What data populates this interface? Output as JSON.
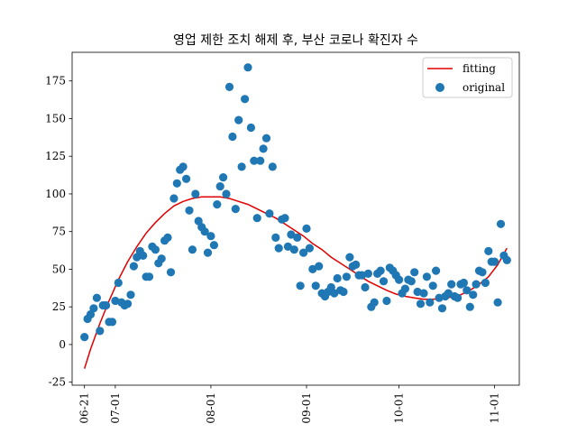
{
  "chart_data": {
    "type": "scatter",
    "title": "영업 제한 조치 해제 후, 부산 코로나 확진자 수",
    "xlabel": "",
    "ylabel": "",
    "x_range": [
      "2021-06-17",
      "2021-11-09"
    ],
    "ylim": [
      -27,
      194
    ],
    "x_ticks": [
      {
        "date": "2021-06-21",
        "label": "06-21"
      },
      {
        "date": "2021-07-01",
        "label": "07-01"
      },
      {
        "date": "2021-08-01",
        "label": "08-01"
      },
      {
        "date": "2021-09-01",
        "label": "09-01"
      },
      {
        "date": "2021-10-01",
        "label": "10-01"
      },
      {
        "date": "2021-11-01",
        "label": "11-01"
      }
    ],
    "y_ticks": [
      -25,
      0,
      25,
      50,
      75,
      100,
      125,
      150,
      175
    ],
    "grid": false,
    "legend_position": "top-right",
    "colors": {
      "fitting": "#e00000",
      "original": "#1f77b4"
    },
    "series": [
      {
        "name": "original",
        "kind": "scatter",
        "points": [
          [
            "2021-06-21",
            5
          ],
          [
            "2021-06-22",
            17
          ],
          [
            "2021-06-23",
            20
          ],
          [
            "2021-06-24",
            24
          ],
          [
            "2021-06-25",
            31
          ],
          [
            "2021-06-26",
            9
          ],
          [
            "2021-06-27",
            26
          ],
          [
            "2021-06-28",
            26
          ],
          [
            "2021-06-29",
            15
          ],
          [
            "2021-06-30",
            15
          ],
          [
            "2021-07-01",
            29
          ],
          [
            "2021-07-02",
            41
          ],
          [
            "2021-07-03",
            28
          ],
          [
            "2021-07-04",
            26
          ],
          [
            "2021-07-05",
            27
          ],
          [
            "2021-07-06",
            33
          ],
          [
            "2021-07-07",
            52
          ],
          [
            "2021-07-08",
            58
          ],
          [
            "2021-07-09",
            62
          ],
          [
            "2021-07-10",
            59
          ],
          [
            "2021-07-11",
            45
          ],
          [
            "2021-07-12",
            45
          ],
          [
            "2021-07-13",
            65
          ],
          [
            "2021-07-14",
            63
          ],
          [
            "2021-07-15",
            54
          ],
          [
            "2021-07-16",
            57
          ],
          [
            "2021-07-17",
            69
          ],
          [
            "2021-07-18",
            71
          ],
          [
            "2021-07-19",
            48
          ],
          [
            "2021-07-20",
            97
          ],
          [
            "2021-07-21",
            107
          ],
          [
            "2021-07-22",
            116
          ],
          [
            "2021-07-23",
            118
          ],
          [
            "2021-07-24",
            110
          ],
          [
            "2021-07-25",
            89
          ],
          [
            "2021-07-26",
            63
          ],
          [
            "2021-07-27",
            100
          ],
          [
            "2021-07-28",
            82
          ],
          [
            "2021-07-29",
            78
          ],
          [
            "2021-07-30",
            75
          ],
          [
            "2021-07-31",
            61
          ],
          [
            "2021-08-01",
            72
          ],
          [
            "2021-08-02",
            66
          ],
          [
            "2021-08-03",
            93
          ],
          [
            "2021-08-04",
            105
          ],
          [
            "2021-08-05",
            111
          ],
          [
            "2021-08-06",
            100
          ],
          [
            "2021-08-07",
            171
          ],
          [
            "2021-08-08",
            138
          ],
          [
            "2021-08-09",
            90
          ],
          [
            "2021-08-10",
            149
          ],
          [
            "2021-08-11",
            118
          ],
          [
            "2021-08-12",
            163
          ],
          [
            "2021-08-13",
            184
          ],
          [
            "2021-08-14",
            144
          ],
          [
            "2021-08-15",
            122
          ],
          [
            "2021-08-16",
            84
          ],
          [
            "2021-08-17",
            122
          ],
          [
            "2021-08-18",
            130
          ],
          [
            "2021-08-19",
            137
          ],
          [
            "2021-08-20",
            87
          ],
          [
            "2021-08-21",
            118
          ],
          [
            "2021-08-22",
            71
          ],
          [
            "2021-08-23",
            64
          ],
          [
            "2021-08-24",
            83
          ],
          [
            "2021-08-25",
            84
          ],
          [
            "2021-08-26",
            65
          ],
          [
            "2021-08-27",
            73
          ],
          [
            "2021-08-28",
            63
          ],
          [
            "2021-08-29",
            71
          ],
          [
            "2021-08-30",
            39
          ],
          [
            "2021-08-31",
            61
          ],
          [
            "2021-09-01",
            77
          ],
          [
            "2021-09-02",
            64
          ],
          [
            "2021-09-03",
            50
          ],
          [
            "2021-09-04",
            39
          ],
          [
            "2021-09-05",
            52
          ],
          [
            "2021-09-06",
            34
          ],
          [
            "2021-09-07",
            32
          ],
          [
            "2021-09-08",
            35
          ],
          [
            "2021-09-09",
            38
          ],
          [
            "2021-09-10",
            34
          ],
          [
            "2021-09-11",
            44
          ],
          [
            "2021-09-12",
            36
          ],
          [
            "2021-09-13",
            35
          ],
          [
            "2021-09-14",
            45
          ],
          [
            "2021-09-15",
            58
          ],
          [
            "2021-09-16",
            52
          ],
          [
            "2021-09-17",
            53
          ],
          [
            "2021-09-18",
            46
          ],
          [
            "2021-09-19",
            46
          ],
          [
            "2021-09-20",
            38
          ],
          [
            "2021-09-21",
            47
          ],
          [
            "2021-09-22",
            25
          ],
          [
            "2021-09-23",
            28
          ],
          [
            "2021-09-24",
            47
          ],
          [
            "2021-09-25",
            49
          ],
          [
            "2021-09-26",
            42
          ],
          [
            "2021-09-27",
            29
          ],
          [
            "2021-09-28",
            51
          ],
          [
            "2021-09-29",
            49
          ],
          [
            "2021-09-30",
            46
          ],
          [
            "2021-10-01",
            43
          ],
          [
            "2021-10-02",
            34
          ],
          [
            "2021-10-03",
            37
          ],
          [
            "2021-10-04",
            43
          ],
          [
            "2021-10-05",
            42
          ],
          [
            "2021-10-06",
            48
          ],
          [
            "2021-10-07",
            35
          ],
          [
            "2021-10-08",
            27
          ],
          [
            "2021-10-09",
            34
          ],
          [
            "2021-10-10",
            45
          ],
          [
            "2021-10-11",
            28
          ],
          [
            "2021-10-12",
            39
          ],
          [
            "2021-10-13",
            49
          ],
          [
            "2021-10-14",
            31
          ],
          [
            "2021-10-15",
            24
          ],
          [
            "2021-10-16",
            32
          ],
          [
            "2021-10-17",
            34
          ],
          [
            "2021-10-18",
            40
          ],
          [
            "2021-10-19",
            32
          ],
          [
            "2021-10-20",
            31
          ],
          [
            "2021-10-21",
            40
          ],
          [
            "2021-10-22",
            41
          ],
          [
            "2021-10-23",
            36
          ],
          [
            "2021-10-24",
            25
          ],
          [
            "2021-10-25",
            33
          ],
          [
            "2021-10-26",
            40
          ],
          [
            "2021-10-27",
            49
          ],
          [
            "2021-10-28",
            48
          ],
          [
            "2021-10-29",
            41
          ],
          [
            "2021-10-30",
            62
          ],
          [
            "2021-10-31",
            55
          ],
          [
            "2021-11-01",
            55
          ],
          [
            "2021-11-02",
            28
          ],
          [
            "2021-11-03",
            80
          ],
          [
            "2021-11-04",
            59
          ],
          [
            "2021-11-05",
            56
          ]
        ]
      },
      {
        "name": "fitting",
        "kind": "line",
        "points": [
          [
            "2021-06-21",
            -16
          ],
          [
            "2021-06-23",
            -3
          ],
          [
            "2021-06-26",
            14
          ],
          [
            "2021-06-29",
            29
          ],
          [
            "2021-07-02",
            43
          ],
          [
            "2021-07-05",
            55
          ],
          [
            "2021-07-08",
            65
          ],
          [
            "2021-07-11",
            74
          ],
          [
            "2021-07-14",
            81
          ],
          [
            "2021-07-17",
            87
          ],
          [
            "2021-07-20",
            92
          ],
          [
            "2021-07-23",
            95
          ],
          [
            "2021-07-26",
            97
          ],
          [
            "2021-07-29",
            98
          ],
          [
            "2021-08-01",
            98
          ],
          [
            "2021-08-04",
            98
          ],
          [
            "2021-08-07",
            97
          ],
          [
            "2021-08-10",
            95
          ],
          [
            "2021-08-13",
            93
          ],
          [
            "2021-08-16",
            90
          ],
          [
            "2021-08-19",
            87
          ],
          [
            "2021-08-22",
            84
          ],
          [
            "2021-08-25",
            80
          ],
          [
            "2021-08-28",
            76
          ],
          [
            "2021-08-31",
            72
          ],
          [
            "2021-09-03",
            67
          ],
          [
            "2021-09-06",
            63
          ],
          [
            "2021-09-09",
            58
          ],
          [
            "2021-09-12",
            54
          ],
          [
            "2021-09-15",
            50
          ],
          [
            "2021-09-18",
            46
          ],
          [
            "2021-09-21",
            42
          ],
          [
            "2021-09-24",
            39
          ],
          [
            "2021-09-27",
            36
          ],
          [
            "2021-09-30",
            33.5
          ],
          [
            "2021-10-03",
            32
          ],
          [
            "2021-10-06",
            31
          ],
          [
            "2021-10-09",
            30
          ],
          [
            "2021-10-12",
            30
          ],
          [
            "2021-10-15",
            30.5
          ],
          [
            "2021-10-18",
            31.5
          ],
          [
            "2021-10-21",
            33
          ],
          [
            "2021-10-24",
            36
          ],
          [
            "2021-10-27",
            40
          ],
          [
            "2021-10-30",
            45
          ],
          [
            "2021-11-02",
            53
          ],
          [
            "2021-11-05",
            64
          ]
        ]
      }
    ]
  }
}
